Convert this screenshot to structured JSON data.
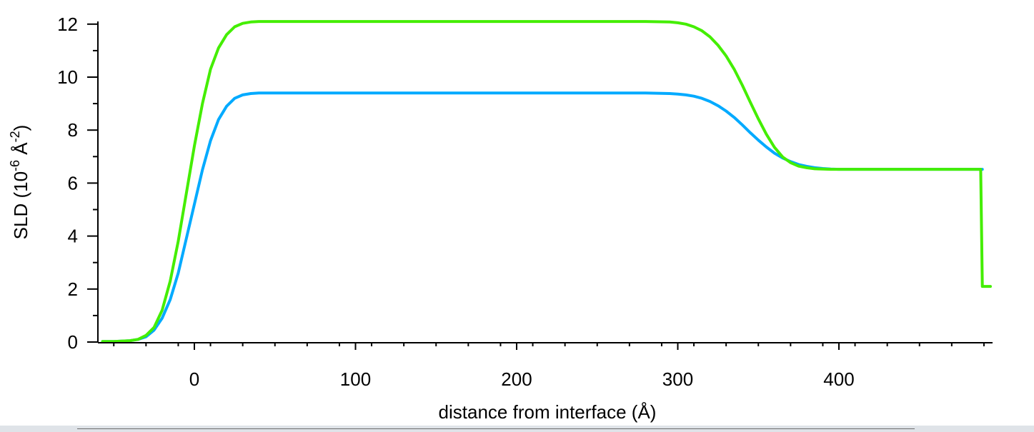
{
  "chart_data": {
    "type": "line",
    "xlabel": "distance from interface (Å)",
    "ylabel_parts": {
      "prefix": "SLD (10",
      "exp1": "-6",
      "middle": " Å",
      "exp2": "-2",
      "suffix": ")"
    },
    "xlim": [
      -60,
      495
    ],
    "ylim": [
      0,
      12.2
    ],
    "xticks": [
      {
        "value": 0,
        "label": "0"
      },
      {
        "value": 100,
        "label": "100"
      },
      {
        "value": 200,
        "label": "200"
      },
      {
        "value": 300,
        "label": "300"
      },
      {
        "value": 400,
        "label": "400"
      }
    ],
    "yticks": [
      {
        "value": 0,
        "label": "0"
      },
      {
        "value": 2,
        "label": "2"
      },
      {
        "value": 4,
        "label": "4"
      },
      {
        "value": 6,
        "label": "6"
      },
      {
        "value": 8,
        "label": "8"
      },
      {
        "value": 10,
        "label": "10"
      },
      {
        "value": 12,
        "label": "12"
      }
    ],
    "grid": false,
    "legend": "none",
    "series": [
      {
        "color": "#00aaff",
        "x": [
          -57,
          -50,
          -40,
          -35,
          -30,
          -25,
          -20,
          -15,
          -10,
          -5,
          0,
          5,
          10,
          15,
          20,
          25,
          30,
          35,
          40,
          60,
          100,
          150,
          200,
          250,
          280,
          295,
          300,
          305,
          310,
          315,
          320,
          325,
          330,
          335,
          340,
          345,
          350,
          355,
          360,
          365,
          370,
          375,
          380,
          385,
          390,
          395,
          400,
          420,
          450,
          470,
          489
        ],
        "y": [
          0.02,
          0.02,
          0.05,
          0.1,
          0.2,
          0.45,
          0.9,
          1.6,
          2.6,
          3.9,
          5.2,
          6.5,
          7.6,
          8.4,
          8.9,
          9.2,
          9.33,
          9.38,
          9.4,
          9.4,
          9.4,
          9.4,
          9.4,
          9.4,
          9.4,
          9.38,
          9.36,
          9.33,
          9.28,
          9.2,
          9.08,
          8.92,
          8.72,
          8.48,
          8.2,
          7.9,
          7.62,
          7.36,
          7.13,
          6.95,
          6.81,
          6.7,
          6.63,
          6.58,
          6.55,
          6.53,
          6.52,
          6.52,
          6.52,
          6.52,
          6.52
        ]
      },
      {
        "color": "#44ee00",
        "x": [
          -57,
          -50,
          -40,
          -35,
          -30,
          -25,
          -20,
          -15,
          -10,
          -5,
          0,
          5,
          10,
          15,
          20,
          25,
          30,
          35,
          40,
          60,
          100,
          150,
          200,
          250,
          280,
          295,
          300,
          305,
          310,
          315,
          320,
          325,
          330,
          335,
          340,
          345,
          350,
          355,
          360,
          365,
          370,
          375,
          380,
          385,
          390,
          395,
          400,
          420,
          450,
          470,
          488,
          489,
          490,
          494
        ],
        "y": [
          0.02,
          0.02,
          0.05,
          0.1,
          0.25,
          0.55,
          1.2,
          2.3,
          3.8,
          5.6,
          7.4,
          9.0,
          10.3,
          11.1,
          11.6,
          11.9,
          12.03,
          12.08,
          12.1,
          12.1,
          12.1,
          12.1,
          12.1,
          12.1,
          12.1,
          12.08,
          12.05,
          12.0,
          11.9,
          11.75,
          11.52,
          11.2,
          10.8,
          10.3,
          9.7,
          9.05,
          8.42,
          7.84,
          7.35,
          6.99,
          6.77,
          6.64,
          6.58,
          6.54,
          6.53,
          6.52,
          6.52,
          6.52,
          6.52,
          6.52,
          6.52,
          2.1,
          2.1,
          2.1
        ]
      }
    ]
  }
}
